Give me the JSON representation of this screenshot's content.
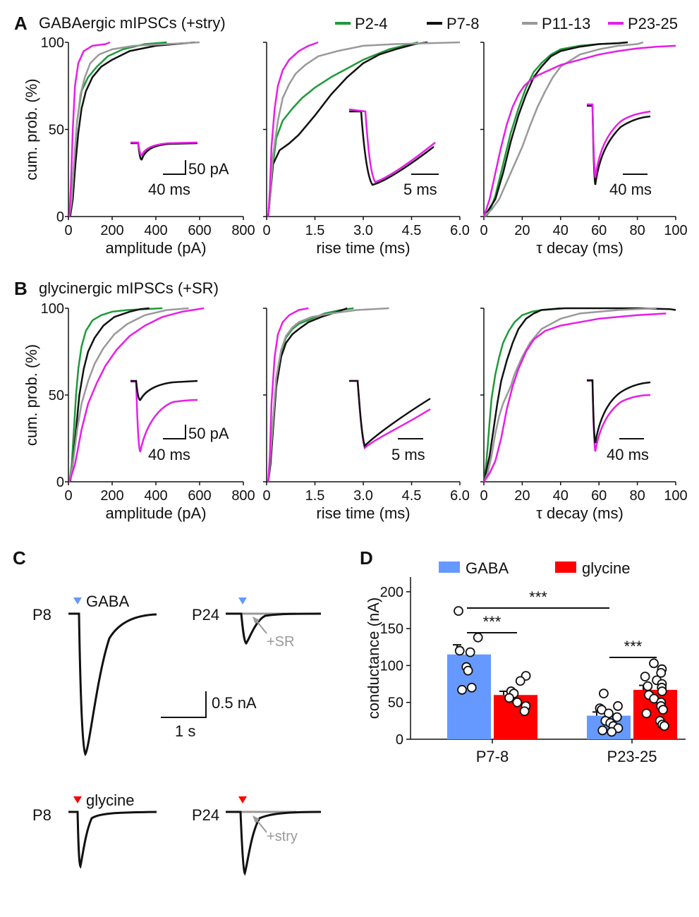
{
  "colors": {
    "P2-4": "#1f9a3a",
    "P7-8": "#111111",
    "P11-13": "#999999",
    "P23-25": "#e61ee6",
    "GABA": "#6699ff",
    "glycine": "#ff0000",
    "black": "#111111",
    "gray": "#999999"
  },
  "legend": [
    "P2-4",
    "P7-8",
    "P11-13",
    "P23-25"
  ],
  "panel_a": {
    "label": "A",
    "title": "GABAergic mIPSCs (+stry)"
  },
  "panel_b": {
    "label": "B",
    "title": "glycinergic mIPSCs (+SR)"
  },
  "panel_c": {
    "label": "C",
    "p8": "P8",
    "p24": "P24",
    "gaba": "GABA",
    "glycine": "glycine",
    "sr": "+SR",
    "stry": "+stry",
    "scale_v": "0.5 nA",
    "scale_t": "1 s"
  },
  "panel_d": {
    "label": "D"
  },
  "chart_data": [
    {
      "type": "line",
      "id": "A1",
      "ylabel": "cum.  prob. (%)",
      "xlabel": "amplitude (pA)",
      "xlim": [
        0,
        800
      ],
      "ylim": [
        0,
        100
      ],
      "xticks": [
        "0",
        "200",
        "400",
        "600",
        "800"
      ],
      "yticks": [
        "0",
        "50",
        "100"
      ],
      "inset_scale": [
        "50 pA",
        "40 ms"
      ],
      "series": [
        {
          "name": "P2-4",
          "x": [
            5,
            15,
            25,
            40,
            60,
            90,
            130,
            180,
            250,
            350,
            450
          ],
          "y": [
            0,
            10,
            30,
            55,
            72,
            80,
            86,
            92,
            96,
            99,
            100
          ]
        },
        {
          "name": "P7-8",
          "x": [
            8,
            20,
            32,
            45,
            60,
            80,
            110,
            150,
            200,
            280,
            400,
            580
          ],
          "y": [
            0,
            10,
            30,
            48,
            62,
            72,
            80,
            86,
            90,
            95,
            98,
            100
          ]
        },
        {
          "name": "P11-13",
          "x": [
            5,
            15,
            25,
            38,
            55,
            75,
            100,
            140,
            200,
            300,
            450,
            600
          ],
          "y": [
            0,
            10,
            30,
            52,
            70,
            80,
            88,
            93,
            96,
            98,
            99,
            100
          ]
        },
        {
          "name": "P23-25",
          "x": [
            5,
            12,
            20,
            30,
            45,
            70,
            110,
            170,
            190
          ],
          "y": [
            0,
            20,
            50,
            75,
            88,
            95,
            98,
            99,
            100
          ]
        }
      ]
    },
    {
      "type": "line",
      "id": "A2",
      "xlabel": "rise time (ms)",
      "xlim": [
        0,
        6
      ],
      "ylim": [
        0,
        100
      ],
      "xticks": [
        "0",
        "1.5",
        "3.0",
        "4.5",
        "6.0"
      ],
      "yticks": [
        "0",
        "50",
        "100"
      ],
      "inset_scale": [
        "5 ms"
      ],
      "series": [
        {
          "name": "P2-4",
          "x": [
            0.05,
            0.1,
            0.2,
            0.3,
            0.5,
            0.8,
            1.1,
            1.5,
            2.0,
            2.5,
            3.0,
            3.8,
            4.7
          ],
          "y": [
            0,
            10,
            30,
            45,
            55,
            62,
            68,
            74,
            80,
            85,
            90,
            96,
            100
          ]
        },
        {
          "name": "P7-8",
          "x": [
            0.05,
            0.1,
            0.2,
            0.4,
            0.7,
            1.0,
            1.5,
            2.0,
            2.5,
            3.0,
            3.5,
            4.0,
            4.6,
            5.0
          ],
          "y": [
            0,
            10,
            30,
            38,
            42,
            47,
            58,
            70,
            80,
            88,
            93,
            96,
            99,
            100
          ]
        },
        {
          "name": "P11-13",
          "x": [
            0.05,
            0.1,
            0.2,
            0.35,
            0.5,
            0.7,
            0.9,
            1.2,
            1.6,
            2.2,
            3.0,
            4.0,
            6.0
          ],
          "y": [
            0,
            10,
            35,
            55,
            68,
            76,
            82,
            87,
            92,
            95,
            98,
            99,
            100
          ]
        },
        {
          "name": "P23-25",
          "x": [
            0.05,
            0.1,
            0.15,
            0.25,
            0.35,
            0.5,
            0.7,
            1.0,
            1.3,
            1.6
          ],
          "y": [
            0,
            15,
            40,
            62,
            75,
            84,
            90,
            95,
            98,
            100
          ]
        }
      ]
    },
    {
      "type": "line",
      "id": "A3",
      "xlabel": "τ decay (ms)",
      "xlim": [
        0,
        100
      ],
      "ylim": [
        0,
        100
      ],
      "xticks": [
        "0",
        "20",
        "40",
        "60",
        "80",
        "100"
      ],
      "yticks": [
        "0",
        "50",
        "100"
      ],
      "inset_scale": [
        "40 ms"
      ],
      "series": [
        {
          "name": "P2-4",
          "x": [
            1,
            3,
            6,
            10,
            14,
            18,
            22,
            26,
            30,
            35,
            40,
            50,
            60,
            70,
            75
          ],
          "y": [
            0,
            3,
            12,
            30,
            48,
            62,
            74,
            83,
            88,
            93,
            96,
            98,
            99,
            99.5,
            100
          ]
        },
        {
          "name": "P7-8",
          "x": [
            0,
            2,
            6,
            10,
            14,
            18,
            22,
            26,
            30,
            35,
            40,
            50,
            60,
            70,
            75
          ],
          "y": [
            0,
            3,
            10,
            25,
            43,
            58,
            70,
            80,
            86,
            92,
            95,
            97.5,
            99,
            99.5,
            100
          ]
        },
        {
          "name": "P11-13",
          "x": [
            0,
            4,
            8,
            12,
            16,
            20,
            24,
            28,
            32,
            36,
            40,
            50,
            60,
            70,
            80,
            83
          ],
          "y": [
            0,
            4,
            10,
            20,
            30,
            40,
            52,
            63,
            72,
            80,
            86,
            93,
            96,
            98,
            99,
            100
          ]
        },
        {
          "name": "P23-25",
          "x": [
            0,
            3,
            6,
            9,
            12,
            15,
            18,
            21,
            24,
            28,
            34,
            40,
            50,
            60,
            70,
            80,
            90,
            100
          ],
          "y": [
            0,
            10,
            25,
            40,
            53,
            63,
            70,
            75,
            78,
            81,
            84,
            87,
            90,
            93,
            95,
            96.5,
            97.5,
            98
          ]
        }
      ]
    },
    {
      "type": "line",
      "id": "B1",
      "ylabel": "cum.  prob. (%)",
      "xlabel": "amplitude (pA)",
      "xlim": [
        0,
        800
      ],
      "ylim": [
        0,
        100
      ],
      "xticks": [
        "0",
        "200",
        "400",
        "600",
        "800"
      ],
      "yticks": [
        "0",
        "50",
        "100"
      ],
      "inset_scale": [
        "50 pA",
        "40 ms"
      ],
      "series": [
        {
          "name": "P2-4",
          "x": [
            5,
            15,
            25,
            35,
            45,
            60,
            80,
            110,
            150,
            200,
            270,
            350,
            430
          ],
          "y": [
            0,
            10,
            30,
            50,
            65,
            78,
            87,
            93,
            96,
            98,
            99,
            99.5,
            100
          ]
        },
        {
          "name": "P7-8",
          "x": [
            8,
            20,
            35,
            50,
            70,
            90,
            120,
            160,
            210,
            280,
            330,
            370
          ],
          "y": [
            0,
            10,
            30,
            50,
            65,
            75,
            83,
            90,
            95,
            98,
            99.5,
            100
          ]
        },
        {
          "name": "P11-13",
          "x": [
            5,
            20,
            40,
            60,
            90,
            120,
            160,
            210,
            270,
            350,
            450,
            550
          ],
          "y": [
            0,
            10,
            30,
            45,
            58,
            68,
            77,
            85,
            91,
            96,
            99,
            100
          ]
        },
        {
          "name": "P23-25",
          "x": [
            5,
            30,
            60,
            90,
            130,
            170,
            220,
            280,
            350,
            430,
            520,
            620
          ],
          "y": [
            0,
            10,
            30,
            45,
            57,
            67,
            76,
            84,
            90,
            95,
            98,
            100
          ]
        }
      ]
    },
    {
      "type": "line",
      "id": "B2",
      "xlabel": "rise time (ms)",
      "xlim": [
        0,
        6
      ],
      "ylim": [
        0,
        100
      ],
      "xticks": [
        "0",
        "1.5",
        "3.0",
        "4.5",
        "6.0"
      ],
      "yticks": [
        "0",
        "50",
        "100"
      ],
      "inset_scale": [
        "5 ms"
      ],
      "series": [
        {
          "name": "P2-4",
          "x": [
            0.05,
            0.1,
            0.2,
            0.3,
            0.45,
            0.6,
            0.8,
            1.0,
            1.4,
            1.8,
            2.3,
            2.7
          ],
          "y": [
            0,
            10,
            35,
            60,
            75,
            83,
            88,
            91,
            94,
            97,
            99,
            100
          ]
        },
        {
          "name": "P7-8",
          "x": [
            0.05,
            0.12,
            0.2,
            0.3,
            0.45,
            0.6,
            0.8,
            1.0,
            1.3,
            1.7,
            2.2,
            2.5
          ],
          "y": [
            0,
            10,
            30,
            55,
            72,
            80,
            85,
            88,
            92,
            95,
            98,
            100
          ]
        },
        {
          "name": "P11-13",
          "x": [
            0.05,
            0.1,
            0.2,
            0.3,
            0.45,
            0.6,
            0.8,
            1.0,
            1.4,
            2.0,
            2.8,
            3.8
          ],
          "y": [
            0,
            10,
            35,
            60,
            76,
            84,
            89,
            92,
            95,
            97,
            99,
            100
          ]
        },
        {
          "name": "P23-25",
          "x": [
            0.05,
            0.1,
            0.15,
            0.25,
            0.35,
            0.5,
            0.7,
            1.0,
            1.3
          ],
          "y": [
            0,
            15,
            45,
            72,
            85,
            92,
            96,
            99,
            100
          ]
        }
      ]
    },
    {
      "type": "line",
      "id": "B3",
      "xlabel": "τ decay (ms)",
      "xlim": [
        0,
        100
      ],
      "ylim": [
        0,
        100
      ],
      "xticks": [
        "0",
        "20",
        "40",
        "60",
        "80",
        "100"
      ],
      "yticks": [
        "0",
        "50",
        "100"
      ],
      "inset_scale": [
        "40 ms"
      ],
      "series": [
        {
          "name": "P2-4",
          "x": [
            0,
            1,
            2,
            3,
            4,
            6,
            8,
            10,
            13,
            16,
            20,
            25,
            30,
            35,
            40
          ],
          "y": [
            0,
            8,
            20,
            35,
            48,
            62,
            72,
            80,
            87,
            92,
            96,
            98,
            99,
            99.5,
            100
          ]
        },
        {
          "name": "P7-8",
          "x": [
            0,
            1,
            3,
            5,
            7,
            9,
            12,
            15,
            18,
            22,
            26,
            30,
            36,
            42,
            60,
            80,
            97,
            100
          ],
          "y": [
            0,
            5,
            15,
            30,
            45,
            58,
            70,
            80,
            88,
            94,
            97,
            99,
            99.5,
            100,
            100,
            100,
            99.5,
            99
          ]
        },
        {
          "name": "P11-13",
          "x": [
            0,
            2,
            4,
            6,
            8,
            10,
            12,
            14,
            16,
            20,
            24,
            30,
            40,
            50,
            70,
            90
          ],
          "y": [
            0,
            5,
            15,
            28,
            38,
            45,
            50,
            55,
            62,
            72,
            80,
            88,
            94,
            97,
            99,
            100
          ]
        },
        {
          "name": "P23-25",
          "x": [
            0,
            3,
            6,
            9,
            12,
            15,
            18,
            22,
            26,
            32,
            40,
            50,
            60,
            70,
            80,
            95
          ],
          "y": [
            0,
            5,
            12,
            25,
            42,
            55,
            65,
            75,
            82,
            87,
            90,
            92,
            94,
            95,
            96,
            97
          ]
        }
      ]
    },
    {
      "type": "bar",
      "id": "D",
      "ylabel": "conductance (nA)",
      "categories": [
        "P7-8",
        "P23-25"
      ],
      "ylim": [
        0,
        220
      ],
      "yticks": [
        "0",
        "50",
        "100",
        "150",
        "200"
      ],
      "series": [
        {
          "name": "GABA",
          "values": [
            115,
            32
          ],
          "sem": [
            13,
            5
          ],
          "points": [
            [
              174,
              138,
              120,
              118,
              98,
              93,
              70,
              67
            ],
            [
              62,
              45,
              42,
              40,
              35,
              30,
              25,
              22,
              18,
              15,
              12,
              10
            ]
          ]
        },
        {
          "name": "glycine",
          "values": [
            60,
            67
          ],
          "sem": [
            5,
            6
          ],
          "points": [
            [
              86,
              79,
              65,
              62,
              56,
              50,
              45,
              38
            ],
            [
              103,
              95,
              90,
              85,
              80,
              75,
              72,
              70,
              65,
              60,
              55,
              50,
              45,
              40,
              35,
              25,
              20,
              18
            ]
          ]
        }
      ],
      "significance": [
        {
          "label": "***",
          "between": [
            "P7-8 GABA",
            "P7-8 glycine"
          ]
        },
        {
          "label": "***",
          "between": [
            "P7-8 GABA",
            "P23-25 GABA"
          ]
        },
        {
          "label": "***",
          "between": [
            "P23-25 GABA",
            "P23-25 glycine"
          ]
        }
      ]
    }
  ]
}
